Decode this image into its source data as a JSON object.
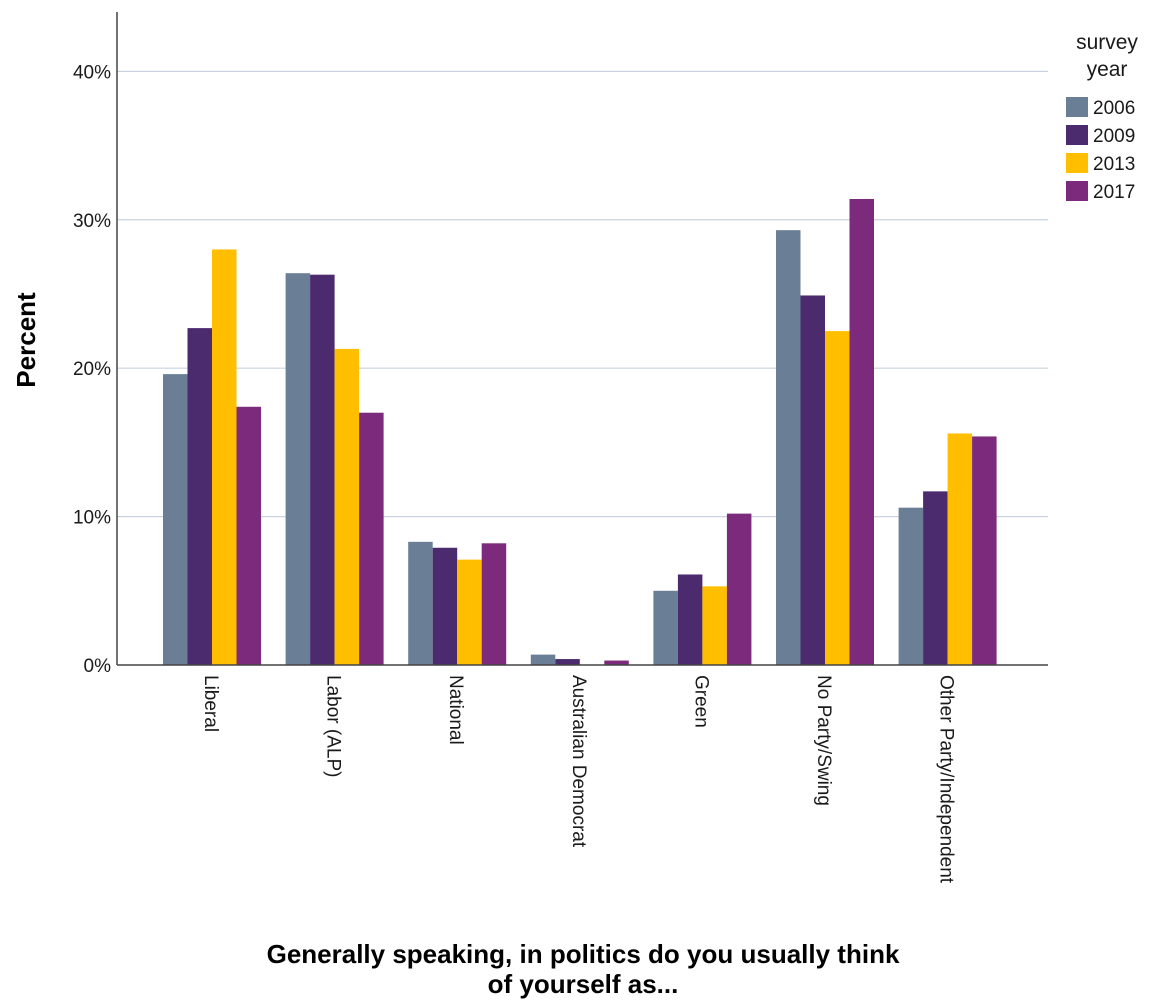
{
  "chart_data": {
    "type": "bar",
    "title": "",
    "xlabel_lines": [
      "Generally speaking, in politics do you usually think",
      "of yourself as..."
    ],
    "ylabel": "Percent",
    "ylim": [
      0,
      44
    ],
    "yticks": [
      0,
      10,
      20,
      30,
      40
    ],
    "ytick_labels": [
      "0%",
      "10%",
      "20%",
      "30%",
      "40%"
    ],
    "grid": true,
    "legend_placement": "top-right",
    "legend_title_lines": [
      "survey",
      "year"
    ],
    "categories": [
      "Liberal",
      "Labor (ALP)",
      "National",
      "Australian Democrat",
      "Green",
      "No Party/Swing",
      "Other Party/Independent"
    ],
    "series": [
      {
        "name": "2006",
        "color": "#6a7f96",
        "values": [
          19.6,
          26.4,
          8.3,
          0.7,
          5.0,
          29.3,
          10.6
        ]
      },
      {
        "name": "2009",
        "color": "#4b2a6e",
        "values": [
          22.7,
          26.3,
          7.9,
          0.4,
          6.1,
          24.9,
          11.7
        ]
      },
      {
        "name": "2013",
        "color": "#ffbf00",
        "values": [
          28.0,
          21.3,
          7.1,
          0.0,
          5.3,
          22.5,
          15.6
        ]
      },
      {
        "name": "2017",
        "color": "#7b2a7c",
        "values": [
          17.4,
          17.0,
          8.2,
          0.3,
          10.2,
          31.4,
          15.4
        ]
      }
    ]
  }
}
